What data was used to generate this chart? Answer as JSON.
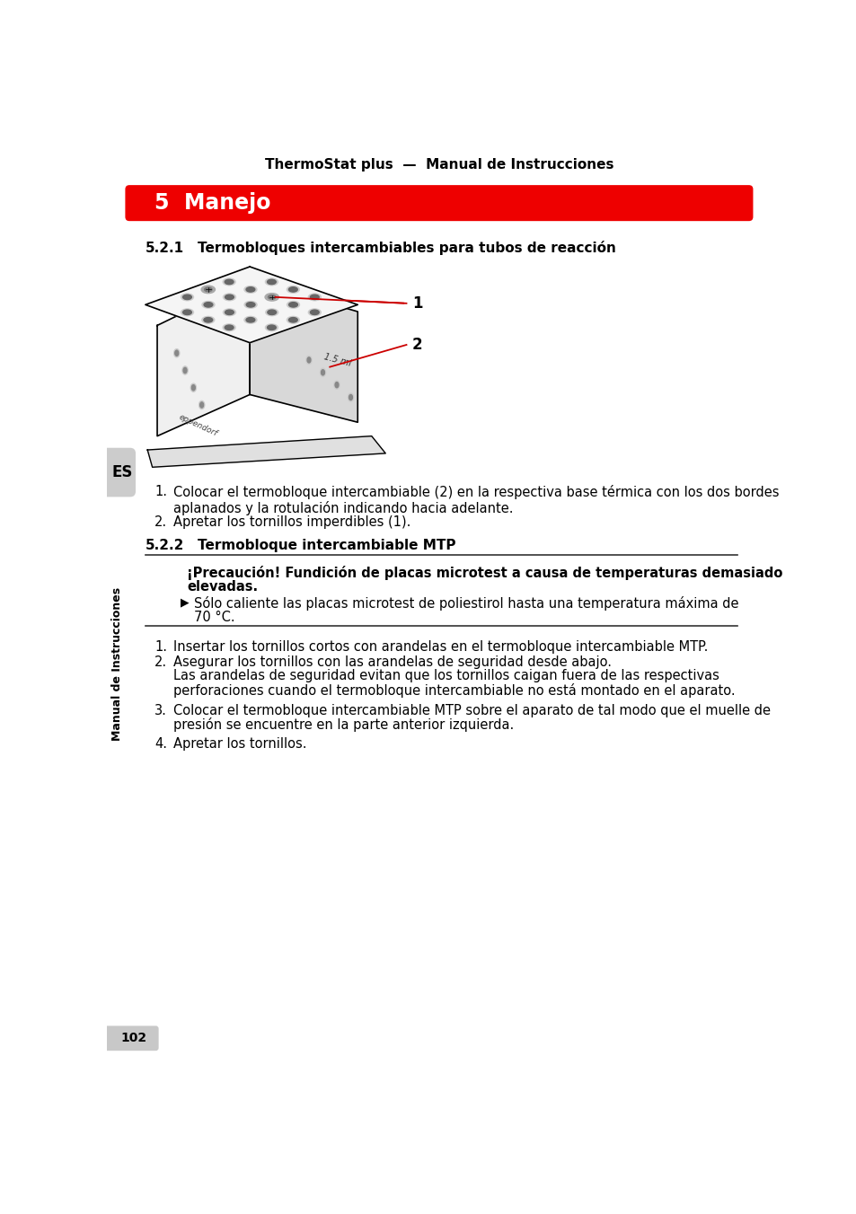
{
  "page_title": "ThermoStat plus  —  Manual de Instrucciones",
  "section_title": "5  Manejo",
  "section_color": "#EE0000",
  "section_text_color": "#FFFFFF",
  "sub521_num": "5.2.1",
  "sub521_text": "Termobloques intercambiables para tubos de reacción",
  "sub522_num": "5.2.2",
  "sub522_text": "Termobloque intercambiable MTP",
  "label1": "1",
  "label2": "2",
  "step1_text": "Colocar el termobloque intercambiable (2) en la respectiva base térmica con los dos bordes\naplanados y la rotulación indicando hacia adelante.",
  "step2_text": "Apretar los tornillos imperdibles (1).",
  "caution_title_line1": "¡Precaución! Fundición de placas microtest a causa de temperaturas demasiado",
  "caution_title_line2": "elevadas.",
  "caution_bullet_line1": "Sólo caliente las placas microtest de poliestirol hasta una temperatura máxima de",
  "caution_bullet_line2": "70 °C.",
  "mtp_step1": "Insertar los tornillos cortos con arandelas en el termobloque intercambiable MTP.",
  "mtp_step2": "Asegurar los tornillos con las arandelas de seguridad desde abajo.",
  "mtp_step2_cont_line1": "Las arandelas de seguridad evitan que los tornillos caigan fuera de las respectivas",
  "mtp_step2_cont_line2": "perforaciones cuando el termobloque intercambiable no está montado en el aparato.",
  "mtp_step3_line1": "Colocar el termobloque intercambiable MTP sobre el aparato de tal modo que el muelle de",
  "mtp_step3_line2": "presión se encuentre en la parte anterior izquierda.",
  "mtp_step4": "Apretar los tornillos.",
  "side_label_es": "ES",
  "side_label_manual": "Manual de Instrucciones",
  "page_number": "102",
  "bg_color": "#FFFFFF",
  "text_color": "#000000",
  "red_color": "#CC0000"
}
